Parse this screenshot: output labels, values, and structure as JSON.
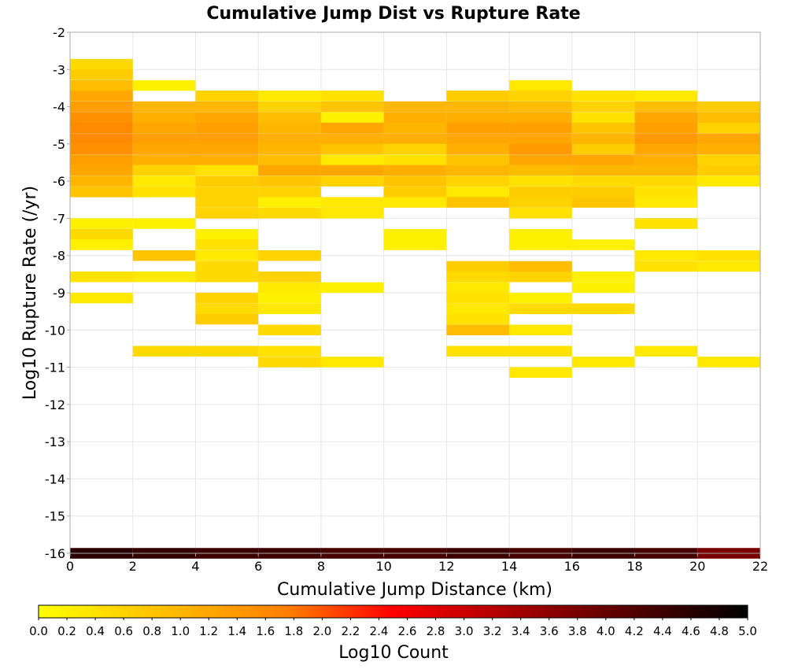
{
  "chart_data": {
    "type": "heatmap",
    "title": "Cumulative Jump Dist vs Rupture Rate",
    "xlabel": "Cumulative Jump Distance (km)",
    "ylabel": "Log10 Rupture Rate (/yr)",
    "xlim": [
      0,
      22
    ],
    "ylim": [
      -16,
      -2
    ],
    "x_ticks": [
      0,
      2,
      4,
      6,
      8,
      10,
      12,
      14,
      16,
      18,
      20,
      22
    ],
    "y_ticks": [
      -2,
      -3,
      -4,
      -5,
      -6,
      -7,
      -8,
      -9,
      -10,
      -11,
      -12,
      -13,
      -14,
      -15,
      -16
    ],
    "x_bin_width": 2,
    "y_bin_height": 0.286,
    "grid": true,
    "colorbar": {
      "label": "Log10 Count",
      "range": [
        0,
        5
      ],
      "ticks": [
        "0.0",
        "0.2",
        "0.4",
        "0.6",
        "0.8",
        "1.0",
        "1.2",
        "1.4",
        "1.6",
        "1.8",
        "2.0",
        "2.2",
        "2.4",
        "2.6",
        "2.8",
        "3.0",
        "3.2",
        "3.4",
        "3.6",
        "3.8",
        "4.0",
        "4.2",
        "4.4",
        "4.6",
        "4.8",
        "5.0"
      ],
      "colors": [
        "#ffff00",
        "#ff7f00",
        "#ff0000",
        "#7f0000",
        "#000000"
      ],
      "position": "bottom"
    },
    "cells": [
      {
        "x": 0,
        "y": -2.86,
        "v": 0.5
      },
      {
        "x": 0,
        "y": -3.14,
        "v": 0.7
      },
      {
        "x": 0,
        "y": -3.43,
        "v": 0.9
      },
      {
        "x": 0,
        "y": -3.71,
        "v": 1.2
      },
      {
        "x": 0,
        "y": -4.0,
        "v": 1.3
      },
      {
        "x": 0,
        "y": -4.29,
        "v": 1.5
      },
      {
        "x": 0,
        "y": -4.57,
        "v": 1.6
      },
      {
        "x": 0,
        "y": -4.86,
        "v": 1.6
      },
      {
        "x": 0,
        "y": -5.14,
        "v": 1.5
      },
      {
        "x": 0,
        "y": -5.43,
        "v": 1.3
      },
      {
        "x": 0,
        "y": -5.71,
        "v": 1.2
      },
      {
        "x": 0,
        "y": -6.0,
        "v": 1.0
      },
      {
        "x": 0,
        "y": -6.29,
        "v": 0.8
      },
      {
        "x": 0,
        "y": -7.14,
        "v": 0.2
      },
      {
        "x": 0,
        "y": -7.43,
        "v": 0.5
      },
      {
        "x": 0,
        "y": -7.71,
        "v": 0.2
      },
      {
        "x": 0,
        "y": -8.57,
        "v": 0.4
      },
      {
        "x": 0,
        "y": -9.14,
        "v": 0.3
      },
      {
        "x": 2,
        "y": -3.43,
        "v": 0.2
      },
      {
        "x": 2,
        "y": -4.0,
        "v": 1.0
      },
      {
        "x": 2,
        "y": -4.29,
        "v": 1.1
      },
      {
        "x": 2,
        "y": -4.57,
        "v": 1.2
      },
      {
        "x": 2,
        "y": -4.86,
        "v": 1.3
      },
      {
        "x": 2,
        "y": -5.14,
        "v": 1.2
      },
      {
        "x": 2,
        "y": -5.43,
        "v": 1.1
      },
      {
        "x": 2,
        "y": -5.71,
        "v": 0.6
      },
      {
        "x": 2,
        "y": -6.0,
        "v": 0.3
      },
      {
        "x": 2,
        "y": -6.29,
        "v": 0.4
      },
      {
        "x": 2,
        "y": -7.14,
        "v": 0.2
      },
      {
        "x": 2,
        "y": -8.0,
        "v": 0.8
      },
      {
        "x": 2,
        "y": -8.57,
        "v": 0.3
      },
      {
        "x": 2,
        "y": -10.57,
        "v": 0.5
      },
      {
        "x": 4,
        "y": -3.71,
        "v": 0.6
      },
      {
        "x": 4,
        "y": -4.0,
        "v": 1.0
      },
      {
        "x": 4,
        "y": -4.29,
        "v": 1.2
      },
      {
        "x": 4,
        "y": -4.57,
        "v": 1.3
      },
      {
        "x": 4,
        "y": -4.86,
        "v": 1.3
      },
      {
        "x": 4,
        "y": -5.14,
        "v": 1.2
      },
      {
        "x": 4,
        "y": -5.43,
        "v": 1.1
      },
      {
        "x": 4,
        "y": -5.71,
        "v": 0.4
      },
      {
        "x": 4,
        "y": -6.0,
        "v": 0.7
      },
      {
        "x": 4,
        "y": -6.29,
        "v": 0.6
      },
      {
        "x": 4,
        "y": -6.57,
        "v": 0.6
      },
      {
        "x": 4,
        "y": -6.86,
        "v": 0.6
      },
      {
        "x": 4,
        "y": -7.43,
        "v": 0.2
      },
      {
        "x": 4,
        "y": -7.71,
        "v": 0.4
      },
      {
        "x": 4,
        "y": -8.0,
        "v": 0.3
      },
      {
        "x": 4,
        "y": -8.29,
        "v": 0.5
      },
      {
        "x": 4,
        "y": -8.57,
        "v": 0.5
      },
      {
        "x": 4,
        "y": -9.14,
        "v": 0.6
      },
      {
        "x": 4,
        "y": -9.43,
        "v": 0.5
      },
      {
        "x": 4,
        "y": -9.71,
        "v": 0.7
      },
      {
        "x": 4,
        "y": -10.57,
        "v": 0.5
      },
      {
        "x": 6,
        "y": -3.71,
        "v": 0.3
      },
      {
        "x": 6,
        "y": -4.0,
        "v": 0.6
      },
      {
        "x": 6,
        "y": -4.29,
        "v": 0.9
      },
      {
        "x": 6,
        "y": -4.57,
        "v": 1.0
      },
      {
        "x": 6,
        "y": -4.86,
        "v": 1.1
      },
      {
        "x": 6,
        "y": -5.14,
        "v": 1.0
      },
      {
        "x": 6,
        "y": -5.43,
        "v": 0.9
      },
      {
        "x": 6,
        "y": -5.71,
        "v": 1.2
      },
      {
        "x": 6,
        "y": -6.0,
        "v": 0.8
      },
      {
        "x": 6,
        "y": -6.29,
        "v": 0.6
      },
      {
        "x": 6,
        "y": -6.57,
        "v": 0.2
      },
      {
        "x": 6,
        "y": -6.86,
        "v": 0.5
      },
      {
        "x": 6,
        "y": -8.0,
        "v": 0.6
      },
      {
        "x": 6,
        "y": -8.57,
        "v": 0.6
      },
      {
        "x": 6,
        "y": -8.86,
        "v": 0.3
      },
      {
        "x": 6,
        "y": -9.14,
        "v": 0.2
      },
      {
        "x": 6,
        "y": -9.43,
        "v": 0.3
      },
      {
        "x": 6,
        "y": -10.0,
        "v": 0.5
      },
      {
        "x": 6,
        "y": -10.57,
        "v": 0.4
      },
      {
        "x": 6,
        "y": -10.86,
        "v": 0.5
      },
      {
        "x": 8,
        "y": -3.71,
        "v": 0.4
      },
      {
        "x": 8,
        "y": -4.0,
        "v": 0.8
      },
      {
        "x": 8,
        "y": -4.29,
        "v": 0.2
      },
      {
        "x": 8,
        "y": -4.57,
        "v": 1.2
      },
      {
        "x": 8,
        "y": -4.86,
        "v": 1.1
      },
      {
        "x": 8,
        "y": -5.14,
        "v": 0.8
      },
      {
        "x": 8,
        "y": -5.43,
        "v": 0.3
      },
      {
        "x": 8,
        "y": -5.71,
        "v": 1.2
      },
      {
        "x": 8,
        "y": -6.0,
        "v": 0.6
      },
      {
        "x": 8,
        "y": -6.57,
        "v": 0.3
      },
      {
        "x": 8,
        "y": -6.86,
        "v": 0.3
      },
      {
        "x": 8,
        "y": -8.86,
        "v": 0.2
      },
      {
        "x": 8,
        "y": -10.86,
        "v": 0.3
      },
      {
        "x": 10,
        "y": -4.0,
        "v": 1.0
      },
      {
        "x": 10,
        "y": -4.29,
        "v": 1.1
      },
      {
        "x": 10,
        "y": -4.57,
        "v": 1.0
      },
      {
        "x": 10,
        "y": -4.86,
        "v": 1.1
      },
      {
        "x": 10,
        "y": -5.14,
        "v": 0.6
      },
      {
        "x": 10,
        "y": -5.43,
        "v": 0.4
      },
      {
        "x": 10,
        "y": -5.71,
        "v": 1.1
      },
      {
        "x": 10,
        "y": -6.0,
        "v": 0.8
      },
      {
        "x": 10,
        "y": -6.29,
        "v": 0.7
      },
      {
        "x": 10,
        "y": -6.57,
        "v": 0.3
      },
      {
        "x": 10,
        "y": -7.71,
        "v": 0.2
      },
      {
        "x": 10,
        "y": -7.43,
        "v": 0.2
      },
      {
        "x": 12,
        "y": -3.71,
        "v": 0.7
      },
      {
        "x": 12,
        "y": -4.0,
        "v": 1.0
      },
      {
        "x": 12,
        "y": -4.29,
        "v": 1.1
      },
      {
        "x": 12,
        "y": -4.57,
        "v": 1.3
      },
      {
        "x": 12,
        "y": -4.86,
        "v": 1.2
      },
      {
        "x": 12,
        "y": -5.14,
        "v": 1.1
      },
      {
        "x": 12,
        "y": -5.43,
        "v": 0.8
      },
      {
        "x": 12,
        "y": -5.71,
        "v": 1.0
      },
      {
        "x": 12,
        "y": -6.0,
        "v": 0.6
      },
      {
        "x": 12,
        "y": -6.29,
        "v": 0.3
      },
      {
        "x": 12,
        "y": -6.57,
        "v": 0.8
      },
      {
        "x": 12,
        "y": -8.29,
        "v": 0.7
      },
      {
        "x": 12,
        "y": -8.57,
        "v": 0.5
      },
      {
        "x": 12,
        "y": -8.86,
        "v": 0.3
      },
      {
        "x": 12,
        "y": -9.14,
        "v": 0.4
      },
      {
        "x": 12,
        "y": -9.43,
        "v": 0.3
      },
      {
        "x": 12,
        "y": -9.71,
        "v": 0.4
      },
      {
        "x": 12,
        "y": -10.0,
        "v": 0.9
      },
      {
        "x": 12,
        "y": -10.57,
        "v": 0.4
      },
      {
        "x": 14,
        "y": -3.43,
        "v": 0.3
      },
      {
        "x": 14,
        "y": -3.71,
        "v": 0.6
      },
      {
        "x": 14,
        "y": -4.0,
        "v": 0.9
      },
      {
        "x": 14,
        "y": -4.29,
        "v": 1.1
      },
      {
        "x": 14,
        "y": -4.57,
        "v": 1.3
      },
      {
        "x": 14,
        "y": -4.86,
        "v": 1.2
      },
      {
        "x": 14,
        "y": -5.14,
        "v": 1.4
      },
      {
        "x": 14,
        "y": -5.43,
        "v": 1.2
      },
      {
        "x": 14,
        "y": -5.71,
        "v": 0.9
      },
      {
        "x": 14,
        "y": -6.0,
        "v": 0.4
      },
      {
        "x": 14,
        "y": -6.29,
        "v": 0.7
      },
      {
        "x": 14,
        "y": -6.57,
        "v": 0.6
      },
      {
        "x": 14,
        "y": -6.86,
        "v": 0.4
      },
      {
        "x": 14,
        "y": -7.43,
        "v": 0.2
      },
      {
        "x": 14,
        "y": -7.71,
        "v": 0.2
      },
      {
        "x": 14,
        "y": -8.29,
        "v": 0.9
      },
      {
        "x": 14,
        "y": -8.57,
        "v": 0.6
      },
      {
        "x": 14,
        "y": -9.14,
        "v": 0.2
      },
      {
        "x": 14,
        "y": -9.43,
        "v": 0.5
      },
      {
        "x": 14,
        "y": -10.0,
        "v": 0.3
      },
      {
        "x": 14,
        "y": -10.57,
        "v": 0.4
      },
      {
        "x": 14,
        "y": -11.14,
        "v": 0.3
      },
      {
        "x": 16,
        "y": -3.71,
        "v": 0.4
      },
      {
        "x": 16,
        "y": -4.0,
        "v": 0.6
      },
      {
        "x": 16,
        "y": -4.29,
        "v": 0.4
      },
      {
        "x": 16,
        "y": -4.57,
        "v": 0.8
      },
      {
        "x": 16,
        "y": -4.86,
        "v": 1.0
      },
      {
        "x": 16,
        "y": -5.14,
        "v": 0.7
      },
      {
        "x": 16,
        "y": -5.43,
        "v": 1.2
      },
      {
        "x": 16,
        "y": -5.71,
        "v": 1.0
      },
      {
        "x": 16,
        "y": -6.0,
        "v": 0.5
      },
      {
        "x": 16,
        "y": -6.29,
        "v": 0.7
      },
      {
        "x": 16,
        "y": -6.57,
        "v": 0.8
      },
      {
        "x": 16,
        "y": -7.71,
        "v": 0.2
      },
      {
        "x": 16,
        "y": -8.57,
        "v": 0.2
      },
      {
        "x": 16,
        "y": -8.86,
        "v": 0.2
      },
      {
        "x": 16,
        "y": -9.43,
        "v": 0.5
      },
      {
        "x": 16,
        "y": -10.86,
        "v": 0.3
      },
      {
        "x": 18,
        "y": -3.71,
        "v": 0.3
      },
      {
        "x": 18,
        "y": -4.0,
        "v": 0.9
      },
      {
        "x": 18,
        "y": -4.29,
        "v": 1.2
      },
      {
        "x": 18,
        "y": -4.57,
        "v": 1.3
      },
      {
        "x": 18,
        "y": -4.86,
        "v": 1.4
      },
      {
        "x": 18,
        "y": -5.14,
        "v": 1.2
      },
      {
        "x": 18,
        "y": -5.43,
        "v": 1.1
      },
      {
        "x": 18,
        "y": -5.71,
        "v": 1.0
      },
      {
        "x": 18,
        "y": -6.0,
        "v": 0.5
      },
      {
        "x": 18,
        "y": -6.29,
        "v": 0.4
      },
      {
        "x": 18,
        "y": -6.57,
        "v": 0.3
      },
      {
        "x": 18,
        "y": -7.14,
        "v": 0.4
      },
      {
        "x": 18,
        "y": -8.0,
        "v": 0.3
      },
      {
        "x": 18,
        "y": -8.29,
        "v": 0.4
      },
      {
        "x": 18,
        "y": -10.57,
        "v": 0.3
      },
      {
        "x": 20,
        "y": -4.0,
        "v": 0.7
      },
      {
        "x": 20,
        "y": -4.29,
        "v": 0.9
      },
      {
        "x": 20,
        "y": -4.57,
        "v": 0.6
      },
      {
        "x": 20,
        "y": -4.86,
        "v": 1.2
      },
      {
        "x": 20,
        "y": -5.14,
        "v": 1.1
      },
      {
        "x": 20,
        "y": -5.43,
        "v": 0.6
      },
      {
        "x": 20,
        "y": -5.71,
        "v": 0.7
      },
      {
        "x": 20,
        "y": -6.0,
        "v": 0.3
      },
      {
        "x": 20,
        "y": -8.0,
        "v": 0.4
      },
      {
        "x": 20,
        "y": -8.29,
        "v": 0.3
      },
      {
        "x": 20,
        "y": -10.86,
        "v": 0.3
      },
      {
        "x": 0,
        "y": -16.0,
        "v": 4.6
      },
      {
        "x": 2,
        "y": -16.0,
        "v": 4.5
      },
      {
        "x": 4,
        "y": -16.0,
        "v": 4.4
      },
      {
        "x": 6,
        "y": -16.0,
        "v": 4.4
      },
      {
        "x": 8,
        "y": -16.0,
        "v": 4.3
      },
      {
        "x": 10,
        "y": -16.0,
        "v": 4.3
      },
      {
        "x": 12,
        "y": -16.0,
        "v": 4.4
      },
      {
        "x": 14,
        "y": -16.0,
        "v": 4.3
      },
      {
        "x": 16,
        "y": -16.0,
        "v": 4.4
      },
      {
        "x": 18,
        "y": -16.0,
        "v": 4.3
      },
      {
        "x": 20,
        "y": -16.0,
        "v": 3.8
      }
    ]
  }
}
